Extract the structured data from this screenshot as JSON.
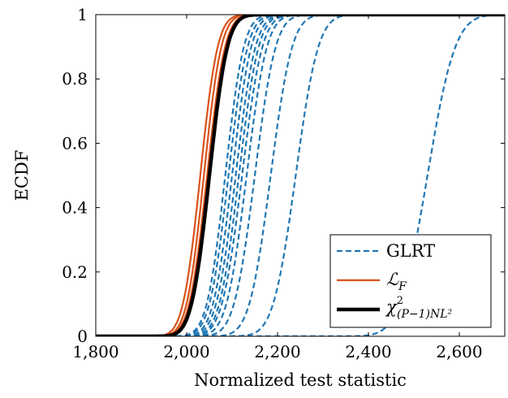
{
  "chart_data": {
    "type": "line",
    "xlabel": "Normalized test statistic",
    "ylabel": "ECDF",
    "xlim": [
      1800,
      2700
    ],
    "ylim": [
      0,
      1
    ],
    "xticks": [
      1800,
      2000,
      2200,
      2400,
      2600
    ],
    "xtick_labels": [
      "1,800",
      "2,000",
      "2,200",
      "2,400",
      "2,600"
    ],
    "yticks": [
      0,
      0.2,
      0.4,
      0.6,
      0.8,
      1
    ],
    "ytick_labels": [
      "0",
      "0.2",
      "0.4",
      "0.6",
      "0.8",
      "1"
    ],
    "grid": false,
    "legend_position": "bottom-right",
    "colors": {
      "glrt": "#1f77b4",
      "lf": "#d95319",
      "chi2": "#000000"
    },
    "series": [
      {
        "name": "GLRT",
        "style": "dashed",
        "color": "#1f77b4",
        "curves": [
          {
            "median": 2085,
            "spread": 32
          },
          {
            "median": 2092,
            "spread": 33
          },
          {
            "median": 2100,
            "spread": 33
          },
          {
            "median": 2108,
            "spread": 34
          },
          {
            "median": 2115,
            "spread": 34
          },
          {
            "median": 2122,
            "spread": 35
          },
          {
            "median": 2132,
            "spread": 35
          },
          {
            "median": 2150,
            "spread": 36
          },
          {
            "median": 2185,
            "spread": 37
          },
          {
            "median": 2240,
            "spread": 39
          },
          {
            "median": 2530,
            "spread": 48
          }
        ]
      },
      {
        "name": "ℒ_F",
        "style": "solid",
        "color": "#d95319",
        "curves": [
          {
            "median": 2030,
            "spread": 30
          },
          {
            "median": 2038,
            "spread": 30
          },
          {
            "median": 2045,
            "spread": 31
          }
        ]
      },
      {
        "name": "χ²_(P−1)NL²",
        "style": "solid-thick",
        "color": "#000000",
        "curves": [
          {
            "median": 2050,
            "spread": 31
          }
        ]
      }
    ],
    "legend": [
      {
        "label": "GLRT",
        "style": "dashed",
        "color": "#1f77b4"
      },
      {
        "label": "ℒF",
        "style": "solid",
        "color": "#d95319"
      },
      {
        "label": "χ²(P−1)NL²",
        "style": "solid-thick",
        "color": "#000000"
      }
    ]
  }
}
